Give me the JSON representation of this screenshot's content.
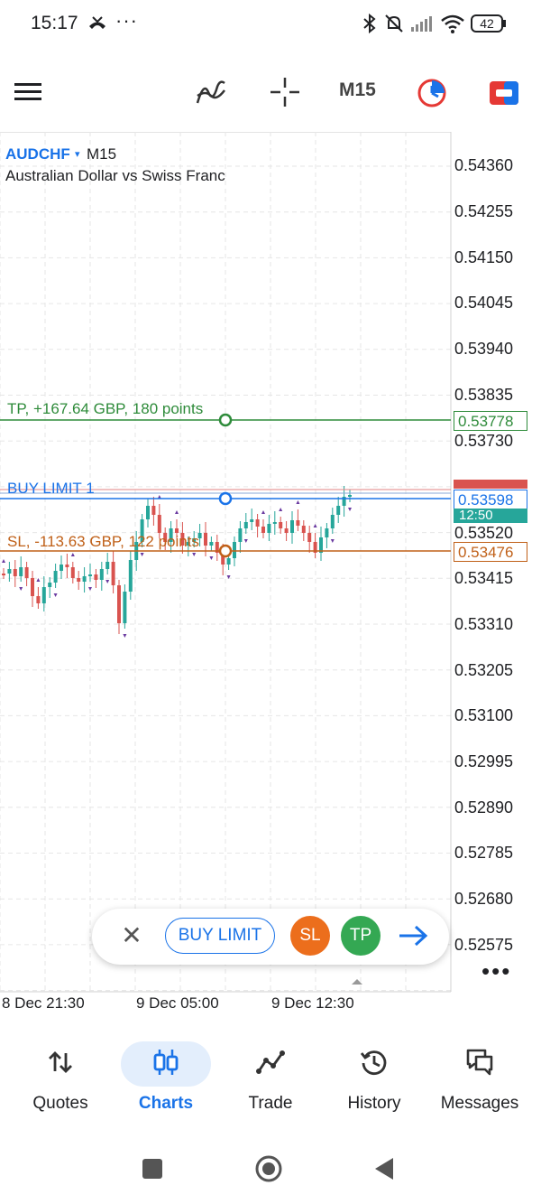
{
  "status_bar": {
    "time": "15:17",
    "dots": "···",
    "battery": "42",
    "icons": [
      "missed-call-icon",
      "bluetooth-icon",
      "mute-icon",
      "signal-icon",
      "wifi-icon",
      "battery-icon"
    ]
  },
  "toolbar": {
    "menu_icon": "menu-icon",
    "indicators_icon": "indicators-icon",
    "crosshair_icon": "crosshair-icon",
    "timeframe": "M15",
    "icons": [
      "timeframe-clock-icon",
      "trade-toggle-icon"
    ]
  },
  "chart": {
    "symbol": "AUDCHF",
    "caret": "▾",
    "timeframe": "M15",
    "description": "Australian Dollar vs Swiss Franc",
    "price_labels": [
      "0.54360",
      "0.54255",
      "0.54150",
      "0.54045",
      "0.53940",
      "0.53835",
      "0.53730",
      "0.53520",
      "0.53415",
      "0.53310",
      "0.53205",
      "0.53100",
      "0.52995",
      "0.52890",
      "0.52785",
      "0.52680",
      "0.52575"
    ],
    "tp_text": "TP, +167.64 GBP, 180 points",
    "tp_price": "0.53778",
    "buy_text": "BUY LIMIT 1",
    "buy_price": "0.53598",
    "sl_text": "SL, -113.63 GBP, 122 points",
    "sl_price": "0.53476",
    "timer": "12:50",
    "time_labels": [
      "8 Dec 21:30",
      "9 Dec 05:00",
      "9 Dec 12:30"
    ],
    "more": "•••"
  },
  "order_bar": {
    "close": "✕",
    "buy_limit": "BUY LIMIT",
    "sl": "SL",
    "tp": "TP",
    "arrow_icon": "arrow-right-icon"
  },
  "bottom_nav": {
    "items": [
      {
        "label": "Quotes",
        "icon": "quotes-icon"
      },
      {
        "label": "Charts",
        "icon": "charts-icon"
      },
      {
        "label": "Trade",
        "icon": "trade-icon"
      },
      {
        "label": "History",
        "icon": "history-icon"
      },
      {
        "label": "Messages",
        "icon": "messages-icon"
      }
    ],
    "active": "Charts"
  },
  "system_nav": [
    "recent-apps-icon",
    "home-icon",
    "back-icon"
  ],
  "colors": {
    "accent": "#1a73e8",
    "tp": "#2e8b3a",
    "sl": "#c06018",
    "bull": "#26a69a",
    "bear": "#d9534f"
  }
}
